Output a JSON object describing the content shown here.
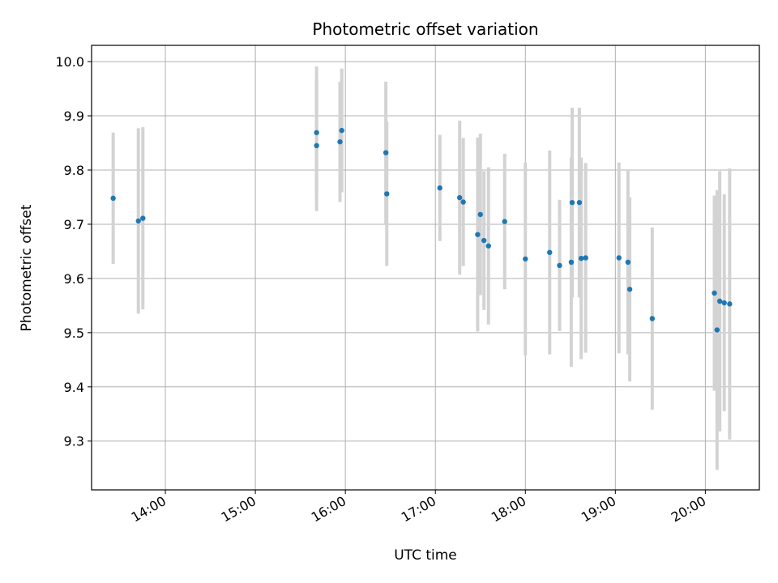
{
  "chart_data": {
    "type": "scatter",
    "title": "Photometric offset variation",
    "xlabel": "UTC time",
    "ylabel": "Photometric offset",
    "grid": true,
    "xlim": [
      13.18,
      20.6
    ],
    "ylim": [
      9.21,
      10.03
    ],
    "x_ticks": [
      {
        "value": 14,
        "label": "14:00"
      },
      {
        "value": 15,
        "label": "15:00"
      },
      {
        "value": 16,
        "label": "16:00"
      },
      {
        "value": 17,
        "label": "17:00"
      },
      {
        "value": 18,
        "label": "18:00"
      },
      {
        "value": 19,
        "label": "19:00"
      },
      {
        "value": 20,
        "label": "20:00"
      }
    ],
    "y_ticks": [
      {
        "value": 9.3,
        "label": "9.3"
      },
      {
        "value": 9.4,
        "label": "9.4"
      },
      {
        "value": 9.5,
        "label": "9.5"
      },
      {
        "value": 9.6,
        "label": "9.6"
      },
      {
        "value": 9.7,
        "label": "9.7"
      },
      {
        "value": 9.8,
        "label": "9.8"
      },
      {
        "value": 9.9,
        "label": "9.9"
      },
      {
        "value": 10.0,
        "label": "10.0"
      }
    ],
    "marker_color": "#1f77b4",
    "errorbar_color": "#d3d3d3",
    "points": [
      {
        "x": 13.42,
        "y": 9.748,
        "err": 0.121
      },
      {
        "x": 13.7,
        "y": 9.706,
        "err": 0.171
      },
      {
        "x": 13.75,
        "y": 9.711,
        "err": 0.168
      },
      {
        "x": 15.68,
        "y": 9.869,
        "err": 0.122
      },
      {
        "x": 15.68,
        "y": 9.845,
        "err": 0.121
      },
      {
        "x": 15.94,
        "y": 9.852,
        "err": 0.111
      },
      {
        "x": 15.96,
        "y": 9.873,
        "err": 0.114
      },
      {
        "x": 16.45,
        "y": 9.832,
        "err": 0.131
      },
      {
        "x": 16.46,
        "y": 9.756,
        "err": 0.133
      },
      {
        "x": 17.05,
        "y": 9.767,
        "err": 0.098
      },
      {
        "x": 17.27,
        "y": 9.749,
        "err": 0.142
      },
      {
        "x": 17.31,
        "y": 9.741,
        "err": 0.118
      },
      {
        "x": 17.47,
        "y": 9.681,
        "err": 0.179
      },
      {
        "x": 17.5,
        "y": 9.718,
        "err": 0.149
      },
      {
        "x": 17.54,
        "y": 9.67,
        "err": 0.128
      },
      {
        "x": 17.59,
        "y": 9.66,
        "err": 0.145
      },
      {
        "x": 17.77,
        "y": 9.705,
        "err": 0.125
      },
      {
        "x": 18.0,
        "y": 9.636,
        "err": 0.178
      },
      {
        "x": 18.27,
        "y": 9.648,
        "err": 0.188
      },
      {
        "x": 18.38,
        "y": 9.624,
        "err": 0.121
      },
      {
        "x": 18.51,
        "y": 9.63,
        "err": 0.193
      },
      {
        "x": 18.52,
        "y": 9.74,
        "err": 0.175
      },
      {
        "x": 18.6,
        "y": 9.74,
        "err": 0.175
      },
      {
        "x": 18.62,
        "y": 9.637,
        "err": 0.186
      },
      {
        "x": 18.67,
        "y": 9.638,
        "err": 0.175
      },
      {
        "x": 19.04,
        "y": 9.638,
        "err": 0.176
      },
      {
        "x": 19.14,
        "y": 9.63,
        "err": 0.17
      },
      {
        "x": 19.16,
        "y": 9.58,
        "err": 0.17
      },
      {
        "x": 19.41,
        "y": 9.526,
        "err": 0.168
      },
      {
        "x": 20.1,
        "y": 9.573,
        "err": 0.18
      },
      {
        "x": 20.13,
        "y": 9.505,
        "err": 0.258
      },
      {
        "x": 20.16,
        "y": 9.558,
        "err": 0.24
      },
      {
        "x": 20.21,
        "y": 9.555,
        "err": 0.2
      },
      {
        "x": 20.27,
        "y": 9.553,
        "err": 0.25
      }
    ]
  }
}
